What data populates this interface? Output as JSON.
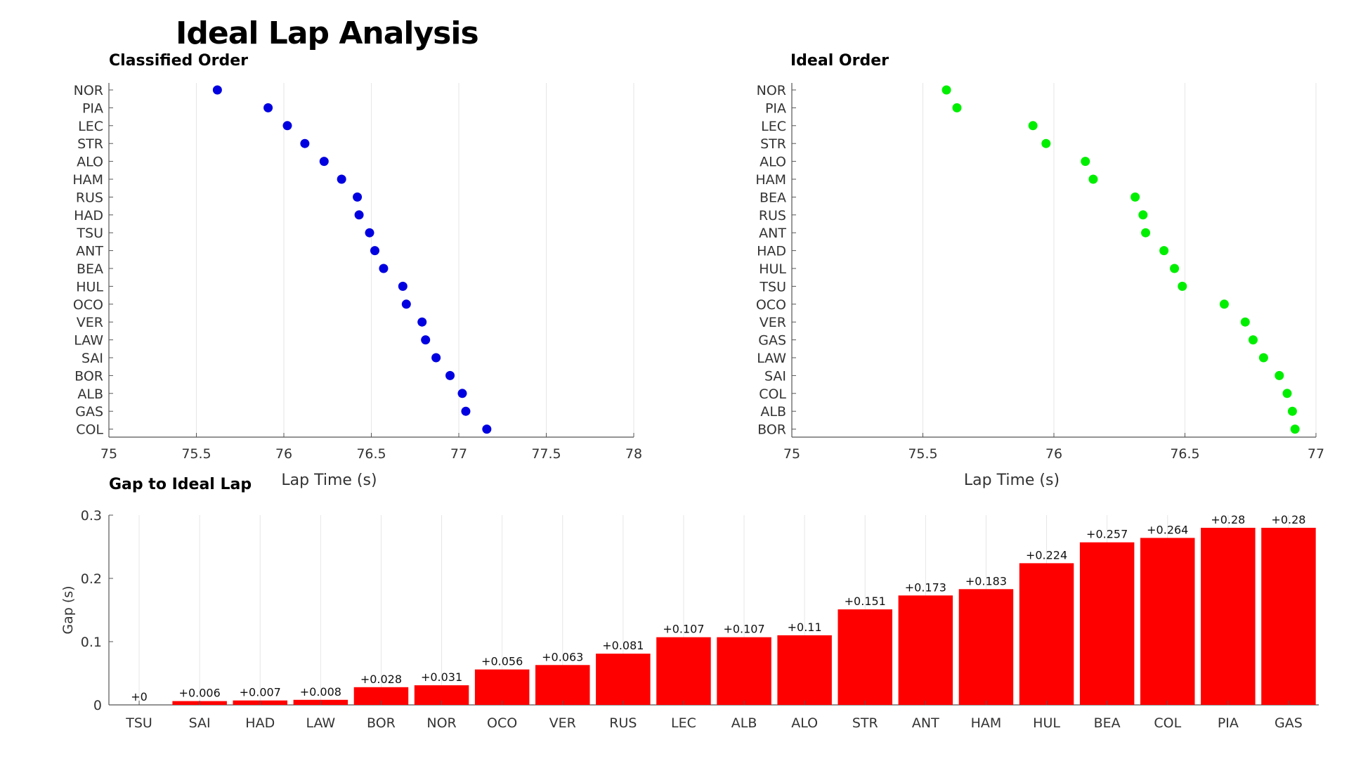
{
  "title": "Ideal Lap Analysis",
  "colors": {
    "classified": "#0000e0",
    "ideal": "#00ee00",
    "bar": "#ff0000",
    "grid": "#e6e6e6",
    "axis": "#555555"
  },
  "chart_data": [
    {
      "type": "scatter",
      "title": "Classified Order",
      "xlabel": "Lap Time (s)",
      "ylabel": "",
      "xlim": [
        75,
        78
      ],
      "xticks": [
        75,
        75.5,
        76,
        76.5,
        77,
        77.5,
        78
      ],
      "grid": true,
      "categories": [
        "NOR",
        "PIA",
        "LEC",
        "STR",
        "ALO",
        "HAM",
        "RUS",
        "HAD",
        "TSU",
        "ANT",
        "BEA",
        "HUL",
        "OCO",
        "VER",
        "LAW",
        "SAI",
        "BOR",
        "ALB",
        "GAS",
        "COL"
      ],
      "values": [
        75.62,
        75.91,
        76.02,
        76.12,
        76.23,
        76.33,
        76.42,
        76.43,
        76.49,
        76.52,
        76.57,
        76.68,
        76.7,
        76.79,
        76.81,
        76.87,
        76.95,
        77.02,
        77.04,
        77.16
      ]
    },
    {
      "type": "scatter",
      "title": "Ideal Order",
      "xlabel": "Lap Time (s)",
      "ylabel": "",
      "xlim": [
        75,
        77
      ],
      "xticks": [
        75,
        75.5,
        76,
        76.5,
        77
      ],
      "grid": true,
      "categories": [
        "NOR",
        "PIA",
        "LEC",
        "STR",
        "ALO",
        "HAM",
        "BEA",
        "RUS",
        "ANT",
        "HAD",
        "HUL",
        "TSU",
        "OCO",
        "VER",
        "GAS",
        "LAW",
        "SAI",
        "COL",
        "ALB",
        "BOR"
      ],
      "values": [
        75.59,
        75.63,
        75.92,
        75.97,
        76.12,
        76.15,
        76.31,
        76.34,
        76.35,
        76.42,
        76.46,
        76.49,
        76.65,
        76.73,
        76.76,
        76.8,
        76.86,
        76.89,
        76.91,
        76.92
      ]
    },
    {
      "type": "bar",
      "title": "Gap to Ideal Lap",
      "xlabel": "",
      "ylabel": "Gap (s)",
      "ylim": [
        0,
        0.3
      ],
      "yticks": [
        0,
        0.1,
        0.2,
        0.3
      ],
      "grid": true,
      "categories": [
        "TSU",
        "SAI",
        "HAD",
        "LAW",
        "BOR",
        "NOR",
        "OCO",
        "VER",
        "RUS",
        "LEC",
        "ALB",
        "ALO",
        "STR",
        "ANT",
        "HAM",
        "HUL",
        "BEA",
        "COL",
        "PIA",
        "GAS"
      ],
      "values": [
        0,
        0.006,
        0.007,
        0.008,
        0.028,
        0.031,
        0.056,
        0.063,
        0.081,
        0.107,
        0.107,
        0.11,
        0.151,
        0.173,
        0.183,
        0.224,
        0.257,
        0.264,
        0.28,
        0.28
      ],
      "data_labels": [
        "+0",
        "+0.006",
        "+0.007",
        "+0.008",
        "+0.028",
        "+0.031",
        "+0.056",
        "+0.063",
        "+0.081",
        "+0.107",
        "+0.107",
        "+0.11",
        "+0.151",
        "+0.173",
        "+0.183",
        "+0.224",
        "+0.257",
        "+0.264",
        "+0.28",
        "+0.28"
      ]
    }
  ]
}
